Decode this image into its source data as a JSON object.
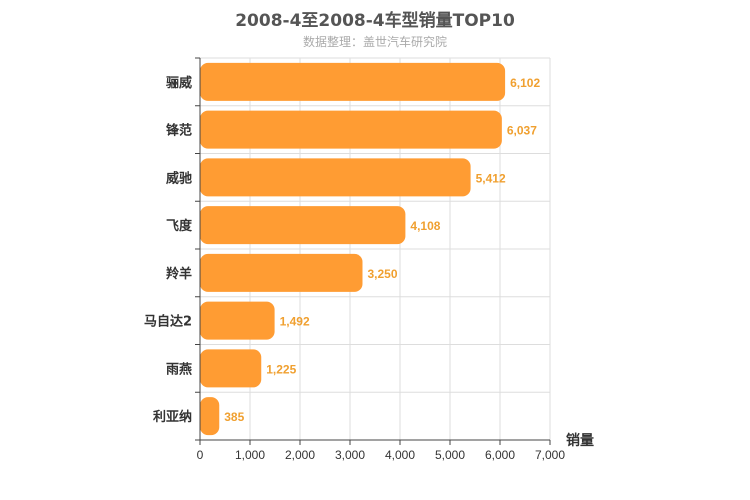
{
  "chart_data": {
    "type": "bar",
    "orientation": "horizontal",
    "title": "2008-4至2008-4车型销量TOP10",
    "subtitle": "数据整理：盖世汽车研究院",
    "categories": [
      "骊威",
      "锋范",
      "威驰",
      "飞度",
      "羚羊",
      "马自达2",
      "雨燕",
      "利亚纳"
    ],
    "values": [
      6102,
      6037,
      5412,
      4108,
      3250,
      1492,
      1225,
      385
    ],
    "value_labels": [
      "6,102",
      "6,037",
      "5,412",
      "4,108",
      "3,250",
      "1,492",
      "1,225",
      "385"
    ],
    "xlabel": "销量",
    "ylabel": "",
    "xlim": [
      0,
      7000
    ],
    "xticks": [
      0,
      1000,
      2000,
      3000,
      4000,
      5000,
      6000,
      7000
    ],
    "xtick_labels": [
      "0",
      "1,000",
      "2,000",
      "3,000",
      "4,000",
      "5,000",
      "6,000",
      "7,000"
    ],
    "grid": true,
    "legend": "none",
    "bar_color": "#ff9c33",
    "label_color": "#f0a030"
  }
}
